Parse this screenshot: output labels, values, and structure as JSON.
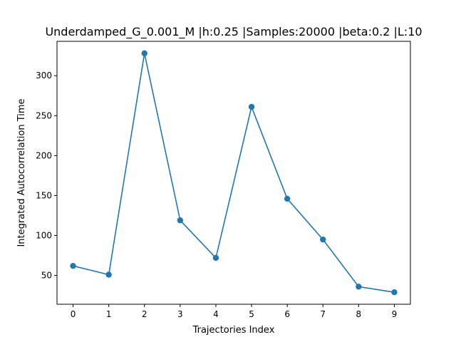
{
  "chart_data": {
    "type": "line",
    "title": "Underdamped_G_0.001_M |h:0.25 |Samples:20000 |beta:0.2 |L:10",
    "xlabel": "Trajectories Index",
    "ylabel": "Integrated Autocorrelation Time",
    "x": [
      0,
      1,
      2,
      3,
      4,
      5,
      6,
      7,
      8,
      9
    ],
    "series": [
      {
        "values": [
          62,
          51,
          328,
          119,
          72,
          261,
          146,
          95,
          36,
          29
        ]
      }
    ],
    "xlim": [
      -0.45,
      9.45
    ],
    "ylim": [
      14,
      343
    ],
    "xticks": [
      "0",
      "1",
      "2",
      "3",
      "4",
      "5",
      "6",
      "7",
      "8",
      "9"
    ],
    "yticks": [
      "50",
      "100",
      "150",
      "200",
      "250",
      "300"
    ],
    "ytick_values": [
      50,
      100,
      150,
      200,
      250,
      300
    ],
    "grid": false,
    "color": "#1f77b4"
  }
}
